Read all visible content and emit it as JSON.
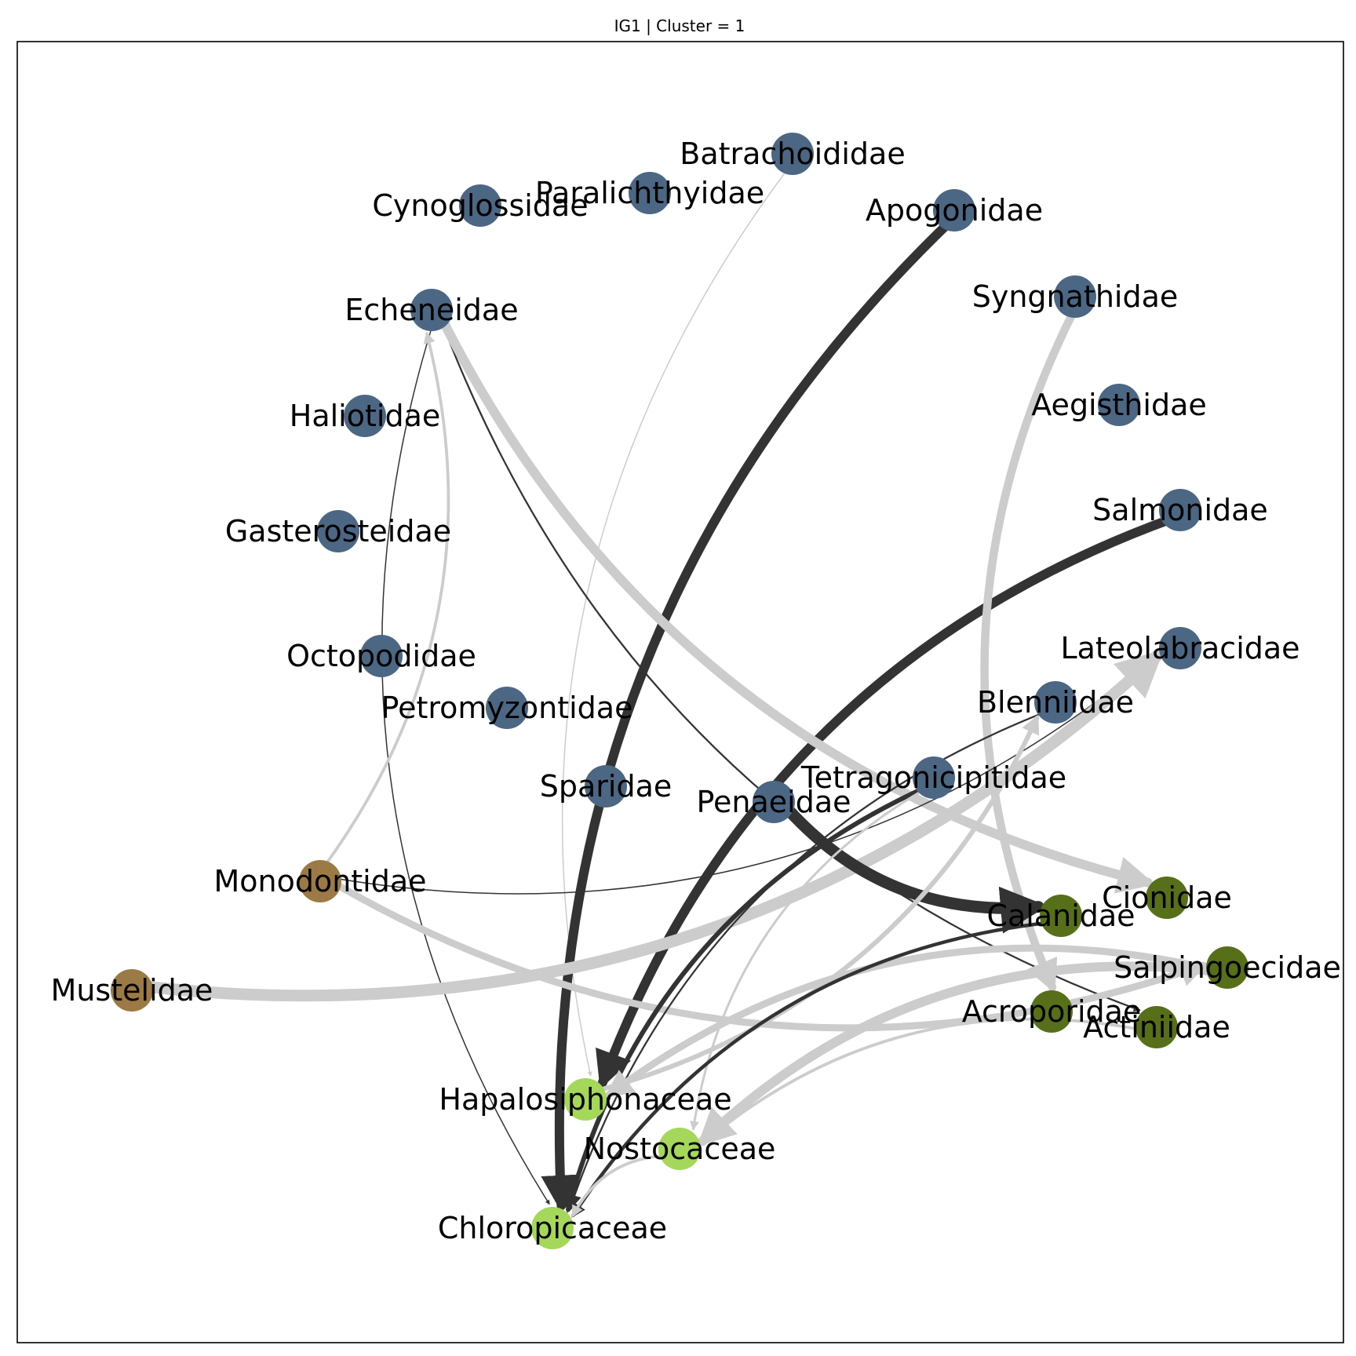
{
  "title": "IG1 | Cluster = 1",
  "colors": {
    "fish": "#4c6784",
    "mammal": "#9b7a45",
    "invertebrate": "#566f18",
    "algae": "#a5d85a",
    "edge_dark": "#333333",
    "edge_light": "#cccccc",
    "frame": "#000000"
  },
  "nodes": [
    {
      "id": "Batrachoididae",
      "label": "Batrachoididae",
      "group": "fish"
    },
    {
      "id": "Paralichthyidae",
      "label": "Paralichthyidae",
      "group": "fish"
    },
    {
      "id": "Cynoglossidae",
      "label": "Cynoglossidae",
      "group": "fish"
    },
    {
      "id": "Apogonidae",
      "label": "Apogonidae",
      "group": "fish"
    },
    {
      "id": "Echeneidae",
      "label": "Echeneidae",
      "group": "fish"
    },
    {
      "id": "Syngnathidae",
      "label": "Syngnathidae",
      "group": "fish"
    },
    {
      "id": "Aegisthidae",
      "label": "Aegisthidae",
      "group": "fish"
    },
    {
      "id": "Haliotidae",
      "label": "Haliotidae",
      "group": "fish"
    },
    {
      "id": "Salmonidae",
      "label": "Salmonidae",
      "group": "fish"
    },
    {
      "id": "Gasterosteidae",
      "label": "Gasterosteidae",
      "group": "fish"
    },
    {
      "id": "Octopodidae",
      "label": "Octopodidae",
      "group": "fish"
    },
    {
      "id": "Lateolabracidae",
      "label": "Lateolabracidae",
      "group": "fish"
    },
    {
      "id": "Petromyzontidae",
      "label": "Petromyzontidae",
      "group": "fish"
    },
    {
      "id": "Blenniidae",
      "label": "Blenniidae",
      "group": "fish"
    },
    {
      "id": "Sparidae",
      "label": "Sparidae",
      "group": "fish"
    },
    {
      "id": "Tetragonicipitidae",
      "label": "Tetragonicipitidae",
      "group": "fish"
    },
    {
      "id": "Penaeidae",
      "label": "Penaeidae",
      "group": "fish"
    },
    {
      "id": "Monodontidae",
      "label": "Monodontidae",
      "group": "mammal"
    },
    {
      "id": "Mustelidae",
      "label": "Mustelidae",
      "group": "mammal"
    },
    {
      "id": "Cionidae",
      "label": "Cionidae",
      "group": "invertebrate"
    },
    {
      "id": "Calanidae",
      "label": "Calanidae",
      "group": "invertebrate"
    },
    {
      "id": "Salpingoecidae",
      "label": "Salpingoecidae",
      "group": "invertebrate"
    },
    {
      "id": "Acroporidae",
      "label": "Acroporidae",
      "group": "invertebrate"
    },
    {
      "id": "Actiniidae",
      "label": "Actiniidae",
      "group": "invertebrate"
    },
    {
      "id": "Hapalosiphonaceae",
      "label": "Hapalosiphonaceae",
      "group": "algae"
    },
    {
      "id": "Nostocaceae",
      "label": "Nostocaceae",
      "group": "algae"
    },
    {
      "id": "Chloropicaceae",
      "label": "Chloropicaceae",
      "group": "algae"
    }
  ],
  "edges": [
    {
      "source": "Batrachoididae",
      "target": "Hapalosiphonaceae",
      "style": "light",
      "weight": 1
    },
    {
      "source": "Apogonidae",
      "target": "Chloropicaceae",
      "style": "dark",
      "weight": 8
    },
    {
      "source": "Salmonidae",
      "target": "Hapalosiphonaceae",
      "style": "dark",
      "weight": 8
    },
    {
      "source": "Echeneidae",
      "target": "Chloropicaceae",
      "style": "dark",
      "weight": 1
    },
    {
      "source": "Echeneidae",
      "target": "Actiniidae",
      "style": "dark",
      "weight": 1.5
    },
    {
      "source": "Echeneidae",
      "target": "Cionidae",
      "style": "light",
      "weight": 8
    },
    {
      "source": "Syngnathidae",
      "target": "Acroporidae",
      "style": "light",
      "weight": 7
    },
    {
      "source": "Monodontidae",
      "target": "Echeneidae",
      "style": "light",
      "weight": 2.5
    },
    {
      "source": "Monodontidae",
      "target": "Lateolabracidae",
      "style": "dark",
      "weight": 1
    },
    {
      "source": "Monodontidae",
      "target": "Salpingoecidae",
      "style": "light",
      "weight": 6
    },
    {
      "source": "Mustelidae",
      "target": "Lateolabracidae",
      "style": "light",
      "weight": 10
    },
    {
      "source": "Penaeidae",
      "target": "Calanidae",
      "style": "dark",
      "weight": 10
    },
    {
      "source": "Tetragonicipitidae",
      "target": "Chloropicaceae",
      "style": "dark",
      "weight": 4
    },
    {
      "source": "Tetragonicipitidae",
      "target": "Nostocaceae",
      "style": "light",
      "weight": 2
    },
    {
      "source": "Blenniidae",
      "target": "Chloropicaceae",
      "style": "dark",
      "weight": 1.5
    },
    {
      "source": "Hapalosiphonaceae",
      "target": "Blenniidae",
      "style": "light",
      "weight": 4
    },
    {
      "source": "Salpingoecidae",
      "target": "Hapalosiphonaceae",
      "style": "light",
      "weight": 6
    },
    {
      "source": "Salpingoecidae",
      "target": "Nostocaceae",
      "style": "light",
      "weight": 8
    },
    {
      "source": "Actiniidae",
      "target": "Nostocaceae",
      "style": "light",
      "weight": 2.5
    },
    {
      "source": "Calanidae",
      "target": "Chloropicaceae",
      "style": "dark",
      "weight": 3
    },
    {
      "source": "Nostocaceae",
      "target": "Chloropicaceae",
      "style": "light",
      "weight": 2.5
    }
  ]
}
